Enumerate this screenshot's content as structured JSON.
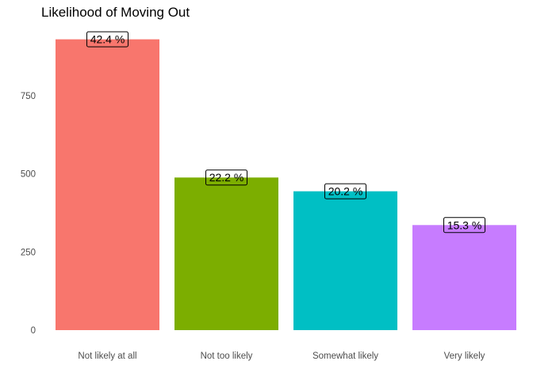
{
  "chart_data": {
    "type": "bar",
    "title": "Likelihood of Moving Out",
    "xlabel": "",
    "ylabel": "",
    "categories": [
      "Not likely at all",
      "Not too likely",
      "Somewhat likely",
      "Very likely"
    ],
    "values": [
      930,
      488,
      444,
      336
    ],
    "labels": [
      "42.4 %",
      "22.2 %",
      "20.2 %",
      "15.3 %"
    ],
    "colors": [
      "#F8766D",
      "#7CAE00",
      "#00BFC4",
      "#C77CFF"
    ],
    "yticks": [
      0,
      250,
      500,
      750
    ],
    "ylim": [
      0,
      960
    ],
    "grid": false,
    "legend": "none"
  }
}
